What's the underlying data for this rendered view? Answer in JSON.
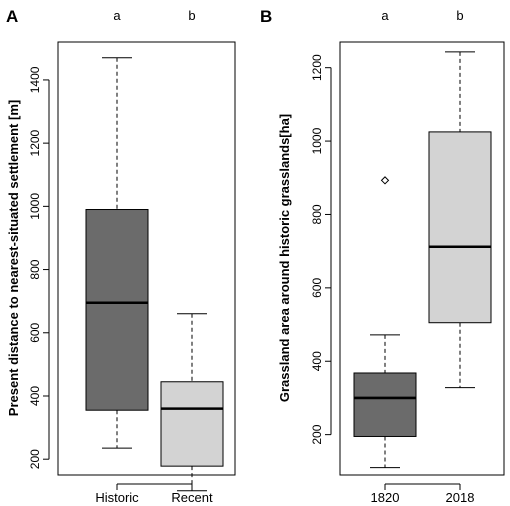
{
  "chart_data": [
    {
      "panel": "A",
      "type": "boxplot",
      "ylabel": "Present distance to nearest-situated settlement [m]",
      "ylim": [
        150,
        1520
      ],
      "yticks": [
        200,
        400,
        600,
        800,
        1000,
        1200,
        1400
      ],
      "categories": [
        "Historic",
        "Recent"
      ],
      "significance": [
        "a",
        "b"
      ],
      "boxes": [
        {
          "name": "Historic",
          "min": 235,
          "q1": 355,
          "median": 695,
          "q3": 990,
          "max": 1470,
          "outliers": [],
          "color": "#6b6b6b"
        },
        {
          "name": "Recent",
          "min": 100,
          "q1": 178,
          "median": 360,
          "q3": 445,
          "max": 660,
          "outliers": [],
          "color": "#d3d3d3"
        }
      ]
    },
    {
      "panel": "B",
      "type": "boxplot",
      "ylabel": "Grassland area  around historic grasslands[ha]",
      "ylim": [
        90,
        1270
      ],
      "yticks": [
        200,
        400,
        600,
        800,
        1000,
        1200
      ],
      "categories": [
        "1820",
        "2018"
      ],
      "significance": [
        "a",
        "b"
      ],
      "boxes": [
        {
          "name": "1820",
          "min": 110,
          "q1": 195,
          "median": 300,
          "q3": 368,
          "max": 472,
          "outliers": [
            893
          ],
          "color": "#6b6b6b"
        },
        {
          "name": "2018",
          "min": 328,
          "q1": 505,
          "median": 712,
          "q3": 1025,
          "max": 1243,
          "outliers": [],
          "color": "#d3d3d3"
        }
      ]
    }
  ]
}
